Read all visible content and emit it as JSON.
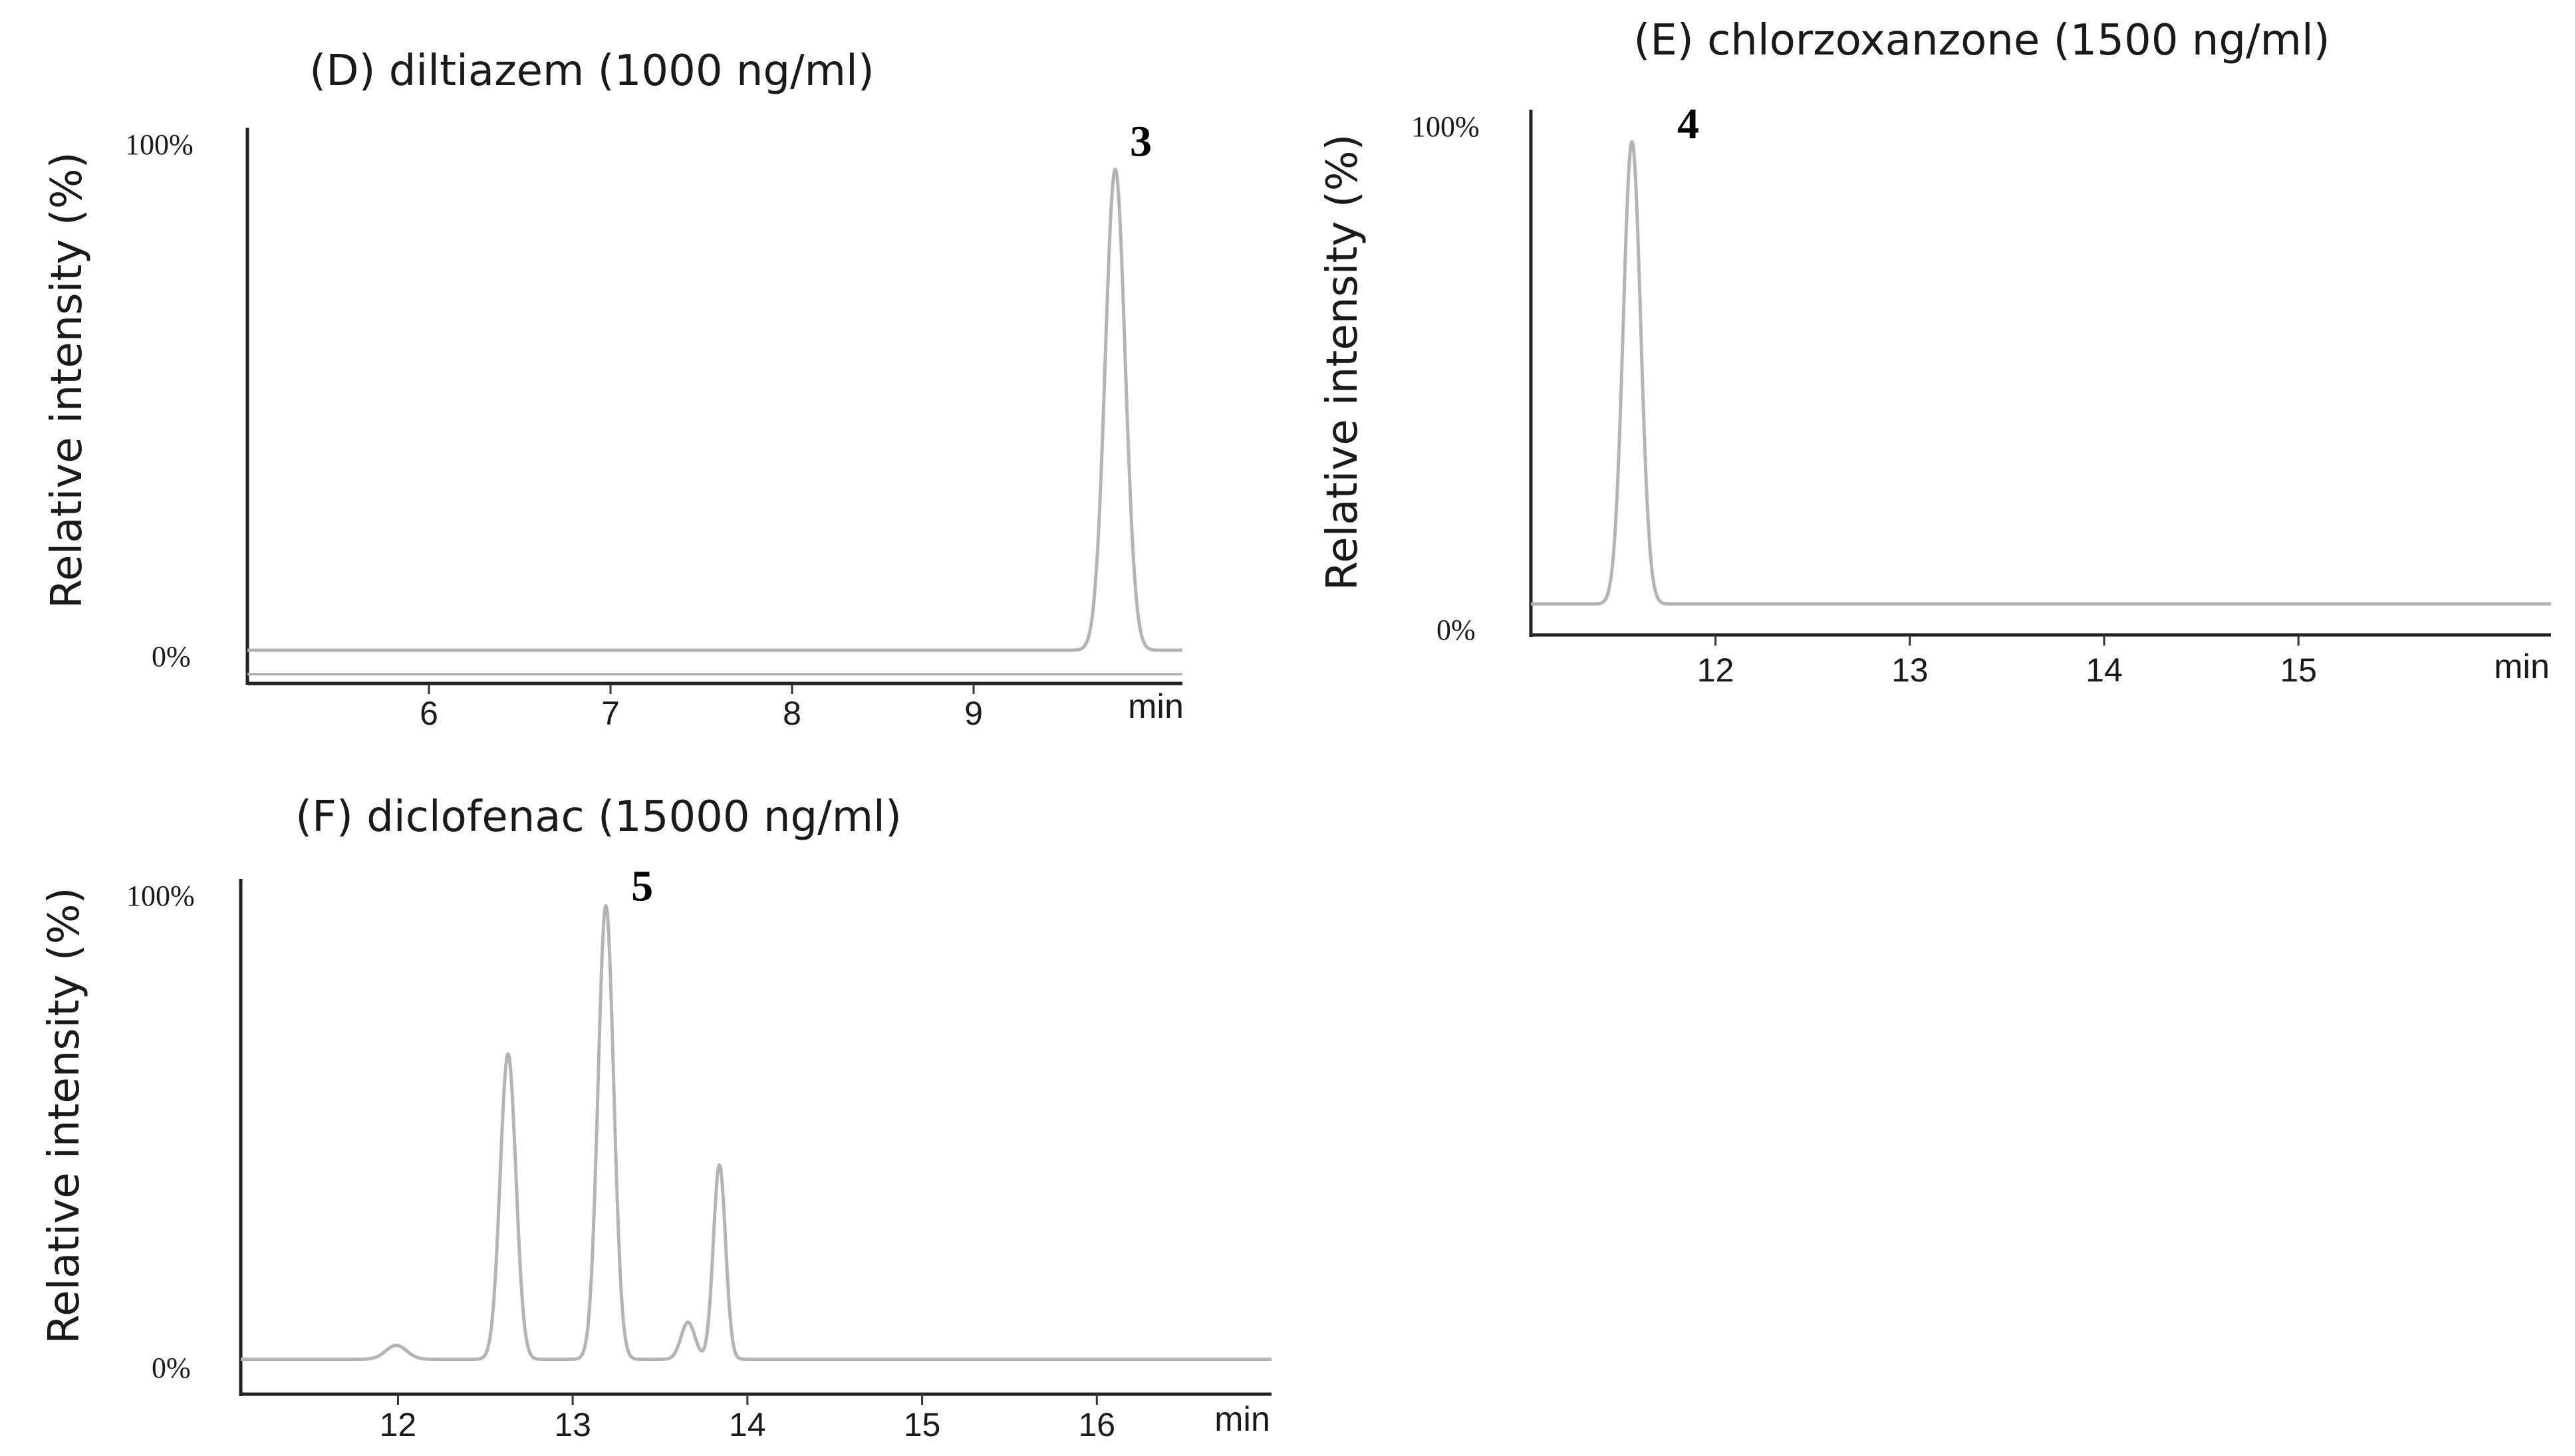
{
  "chart_data": [
    {
      "type": "line",
      "panel": "D",
      "title": "(D) diltiazem (1000 ng/ml)",
      "ylabel": "Relative intensity (%)",
      "y_top_label": "100%",
      "y_bottom_label": "0%",
      "xunit": "min",
      "xlim": [
        5.0,
        10.15
      ],
      "ylim": [
        0,
        100
      ],
      "xticks": [
        6,
        7,
        8,
        9
      ],
      "xtick_labels": [
        "6",
        "7",
        "8",
        "9"
      ],
      "baseline": 0,
      "peaks": [
        {
          "rt": 9.78,
          "height": 97,
          "width": 0.055,
          "label": "3"
        }
      ],
      "series": [
        {
          "name": "diltiazem",
          "values": "computed from peaks"
        }
      ]
    },
    {
      "type": "line",
      "panel": "E",
      "title": "(E) chlorzoxanzone (1500 ng/ml)",
      "ylabel": "Relative intensity (%)",
      "y_top_label": "100%",
      "y_bottom_label": "0%",
      "xunit": "min",
      "xlim": [
        11.05,
        16.3
      ],
      "ylim": [
        0,
        100
      ],
      "xticks": [
        12,
        13,
        14,
        15
      ],
      "xtick_labels": [
        "12",
        "13",
        "14",
        "15"
      ],
      "baseline": 0.5,
      "peaks": [
        {
          "rt": 11.57,
          "height": 97,
          "width": 0.045,
          "label": "4"
        }
      ],
      "series": [
        {
          "name": "chlorzoxanzone",
          "values": "computed from peaks"
        }
      ]
    },
    {
      "type": "line",
      "panel": "F",
      "title": "(F) diclofenac (15000 ng/ml)",
      "ylabel": "Relative intensity (%)",
      "y_top_label": "100%",
      "y_bottom_label": "0%",
      "xunit": "min",
      "xlim": [
        11.1,
        17.0
      ],
      "ylim": [
        0,
        100
      ],
      "xticks": [
        12,
        13,
        14,
        15,
        16
      ],
      "xtick_labels": [
        "12",
        "13",
        "14",
        "15",
        "16"
      ],
      "baseline": 0.5,
      "peaks": [
        {
          "rt": 11.99,
          "height": 3,
          "width": 0.06
        },
        {
          "rt": 12.63,
          "height": 66,
          "width": 0.045
        },
        {
          "rt": 13.19,
          "height": 98,
          "width": 0.045,
          "label": "5"
        },
        {
          "rt": 13.66,
          "height": 8,
          "width": 0.04
        },
        {
          "rt": 13.84,
          "height": 42,
          "width": 0.035
        }
      ],
      "series": [
        {
          "name": "diclofenac",
          "values": "computed from peaks"
        }
      ]
    }
  ]
}
